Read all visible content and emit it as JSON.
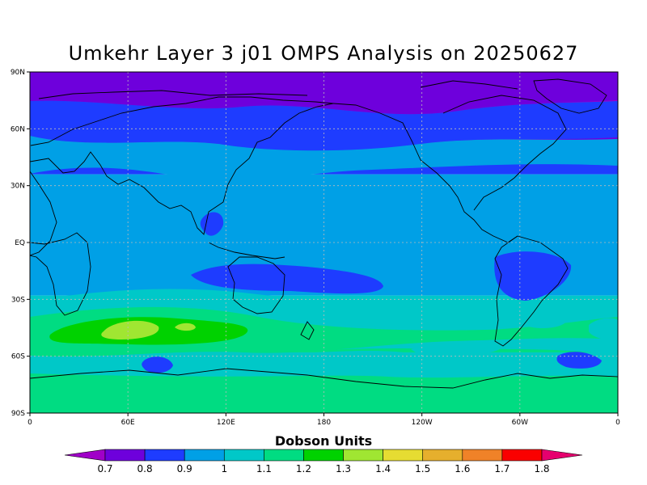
{
  "title": "Umkehr Layer 3 j01 OMPS Analysis on 20250627",
  "map": {
    "projection": "equirectangular",
    "center_longitude": 180,
    "lat_ticks": [
      "90N",
      "60N",
      "30N",
      "EQ",
      "30S",
      "60S",
      "90S"
    ],
    "lon_ticks": [
      "0",
      "60E",
      "120E",
      "180",
      "120W",
      "60W",
      "0"
    ],
    "gridlines": "dotted",
    "field_bands": [
      {
        "lat_from": 90,
        "lat_to": 67,
        "level": 0
      },
      {
        "lat_from": 67,
        "lat_to": 52,
        "level": 1
      },
      {
        "lat_from": 52,
        "lat_to": 36,
        "level": 2
      },
      {
        "lat_from": 36,
        "lat_to": -28,
        "level": 3
      },
      {
        "lat_from": -28,
        "lat_to": -40,
        "level": 4
      },
      {
        "lat_from": -40,
        "lat_to": -58,
        "level": 5
      },
      {
        "lat_from": -58,
        "lat_to": -68,
        "level": 4
      },
      {
        "lat_from": -68,
        "lat_to": -90,
        "level": 5
      }
    ]
  },
  "colorbar": {
    "title": "Dobson Units",
    "levels": [
      "0.7",
      "0.8",
      "0.9",
      "1",
      "1.1",
      "1.2",
      "1.3",
      "1.4",
      "1.5",
      "1.6",
      "1.7",
      "1.8"
    ],
    "colors": [
      "#a000c8",
      "#6e00dc",
      "#1e3cff",
      "#00a0e6",
      "#00c8c8",
      "#00dc82",
      "#00d200",
      "#a0e632",
      "#e6dc32",
      "#e6af2d",
      "#f08228",
      "#fa0000",
      "#e6006e"
    ]
  }
}
